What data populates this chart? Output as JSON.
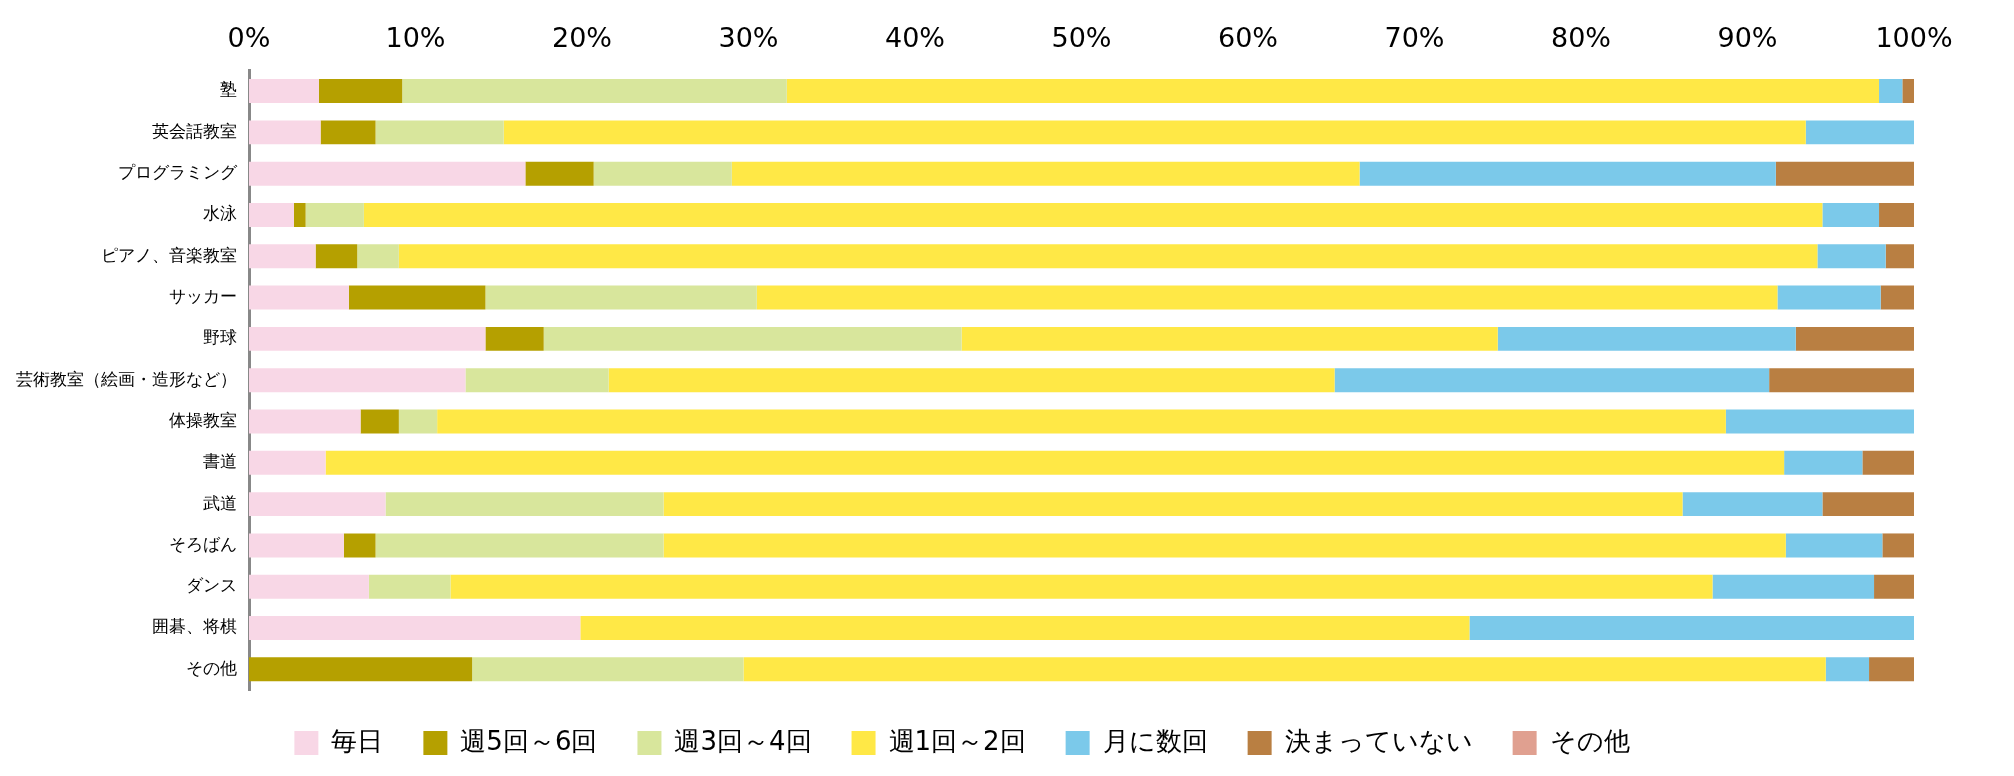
{
  "chart_data": {
    "type": "bar",
    "orientation": "horizontal",
    "stacked": true,
    "categories": [
      "塾",
      "英会話教室",
      "プログラミング",
      "水泳",
      "ピアノ、音楽教室",
      "サッカー",
      "野球",
      "芸術教室（絵画・造形など）",
      "体操教室",
      "書道",
      "武道",
      "そろばん",
      "ダンス",
      "囲碁、将棋",
      "その他"
    ],
    "series": [
      {
        "name": "毎日",
        "color": "#f8d7e6",
        "values": [
          4.2,
          4.3,
          16.6,
          2.7,
          4.0,
          6.0,
          14.2,
          13.0,
          6.7,
          4.6,
          8.2,
          5.7,
          7.2,
          19.9,
          0
        ]
      },
      {
        "name": "週5回～6回",
        "color": "#b5a000",
        "values": [
          5.0,
          3.3,
          4.1,
          0.7,
          2.5,
          8.2,
          3.5,
          0,
          2.3,
          0,
          0,
          1.9,
          0,
          0,
          13.4
        ]
      },
      {
        "name": "週3回～4回",
        "color": "#d8e69c",
        "values": [
          23.1,
          7.7,
          8.3,
          3.5,
          2.5,
          16.3,
          25.1,
          8.6,
          2.3,
          0,
          16.7,
          17.3,
          4.9,
          0,
          16.3
        ]
      },
      {
        "name": "週1回～2回",
        "color": "#ffe846",
        "values": [
          65.6,
          78.2,
          37.7,
          87.6,
          85.2,
          61.3,
          32.2,
          43.6,
          77.4,
          87.6,
          61.2,
          67.4,
          75.8,
          53.4,
          65.0
        ]
      },
      {
        "name": "月に数回",
        "color": "#7bc9ea",
        "values": [
          1.4,
          6.5,
          25.0,
          3.4,
          4.1,
          6.2,
          17.9,
          26.1,
          11.3,
          4.7,
          8.4,
          5.8,
          9.7,
          26.7,
          2.6
        ]
      },
      {
        "name": "決まっていない",
        "color": "#b97f42",
        "values": [
          0.7,
          0,
          8.3,
          2.1,
          1.7,
          2.0,
          7.1,
          8.7,
          0,
          3.1,
          5.5,
          1.9,
          2.4,
          0,
          2.7
        ]
      },
      {
        "name": "その他",
        "color": "#e0a090",
        "values": [
          0,
          0,
          0,
          0,
          0,
          0,
          0,
          0,
          0,
          0,
          0,
          0,
          0,
          0,
          0
        ]
      }
    ],
    "xlim": [
      0,
      100
    ],
    "xticks": [
      {
        "value": 0,
        "label": "0%"
      },
      {
        "value": 10,
        "label": "10%"
      },
      {
        "value": 20,
        "label": "20%"
      },
      {
        "value": 30,
        "label": "30%"
      },
      {
        "value": 40,
        "label": "40%"
      },
      {
        "value": 50,
        "label": "50%"
      },
      {
        "value": 60,
        "label": "60%"
      },
      {
        "value": 70,
        "label": "70%"
      },
      {
        "value": 80,
        "label": "80%"
      },
      {
        "value": 90,
        "label": "90%"
      },
      {
        "value": 100,
        "label": "100%"
      }
    ],
    "grid": false,
    "legend": "bottom"
  }
}
